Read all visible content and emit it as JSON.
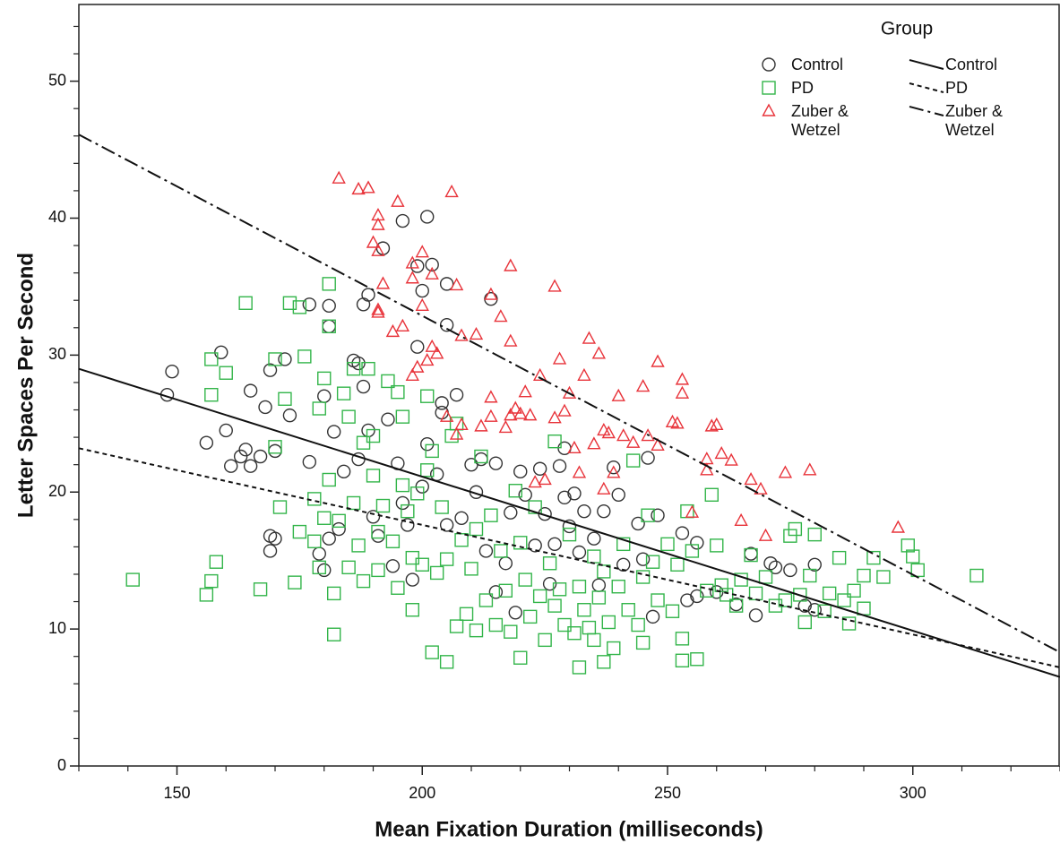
{
  "chart_data": {
    "type": "scatter",
    "xlabel": "Mean Fixation Duration (milliseconds)",
    "ylabel": "Letter Spaces Per Second",
    "legend_title": "Group",
    "xlim": [
      130,
      330
    ],
    "ylim": [
      0,
      55.6
    ],
    "xticks": [
      150,
      200,
      250,
      300
    ],
    "yticks": [
      0,
      10,
      20,
      30,
      40,
      50
    ],
    "xminor_ticks": [
      130,
      140,
      160,
      170,
      180,
      190,
      210,
      220,
      230,
      240,
      260,
      270,
      280,
      290,
      310,
      320,
      330
    ],
    "yminor_ticks": [
      2,
      4,
      6,
      8,
      12,
      14,
      16,
      18,
      22,
      24,
      26,
      28,
      32,
      34,
      36,
      38,
      42,
      44,
      46,
      48,
      52,
      54
    ],
    "series": [
      {
        "name": "Control",
        "color": "#333333",
        "marker": "circle",
        "x": [
          148,
          149,
          156,
          159,
          160,
          161,
          163,
          164,
          165,
          165,
          167,
          168,
          169,
          169,
          169,
          170,
          170,
          172,
          173,
          177,
          177,
          179,
          180,
          180,
          181,
          181,
          181,
          182,
          183,
          184,
          186,
          187,
          187,
          188,
          188,
          189,
          189,
          190,
          191,
          192,
          193,
          194,
          195,
          196,
          196,
          197,
          198,
          199,
          199,
          200,
          200,
          201,
          201,
          202,
          203,
          204,
          204,
          205,
          205,
          205,
          207,
          208,
          210,
          211,
          212,
          213,
          214,
          215,
          215,
          217,
          218,
          219,
          220,
          221,
          223,
          224,
          225,
          226,
          227,
          228,
          229,
          229,
          230,
          231,
          232,
          233,
          235,
          236,
          237,
          239,
          240,
          241,
          244,
          245,
          246,
          247,
          248,
          253,
          254,
          256,
          256,
          260,
          264,
          267,
          268,
          271,
          272,
          275,
          278,
          280,
          280
        ],
        "y": [
          27.1,
          28.8,
          23.6,
          30.2,
          24.5,
          21.9,
          22.6,
          23.1,
          21.9,
          27.4,
          22.6,
          26.2,
          28.9,
          16.8,
          15.7,
          23,
          16.6,
          29.7,
          25.6,
          22.2,
          33.7,
          15.5,
          27,
          14.3,
          32.1,
          33.6,
          16.6,
          24.4,
          17.3,
          21.5,
          29.6,
          29.4,
          22.4,
          27.7,
          33.7,
          24.5,
          34.4,
          18.2,
          16.8,
          37.8,
          25.3,
          14.6,
          22.1,
          39.8,
          19.2,
          17.6,
          13.6,
          36.5,
          30.6,
          34.7,
          20.4,
          40.1,
          23.5,
          36.6,
          21.3,
          26.5,
          25.8,
          35.2,
          32.2,
          17.6,
          27.1,
          18.1,
          22,
          20,
          22.4,
          15.7,
          34.1,
          12.7,
          22.1,
          14.8,
          18.5,
          11.2,
          21.5,
          19.8,
          16.1,
          21.7,
          18.4,
          13.3,
          16.2,
          21.9,
          19.6,
          23.2,
          17.5,
          19.9,
          15.6,
          18.6,
          16.6,
          13.2,
          18.6,
          21.8,
          19.8,
          14.7,
          17.7,
          15.1,
          22.5,
          10.9,
          18.3,
          17,
          12.1,
          16.3,
          12.4,
          12.7,
          11.8,
          15.5,
          11,
          14.8,
          14.5,
          14.3,
          11.7,
          14.7,
          11.4
        ]
      },
      {
        "name": "PD",
        "color": "#33b54a",
        "marker": "square",
        "x": [
          141,
          156,
          157,
          157,
          157,
          158,
          160,
          164,
          167,
          170,
          170,
          171,
          172,
          173,
          174,
          175,
          175,
          176,
          178,
          178,
          179,
          179,
          180,
          180,
          181,
          181,
          181,
          182,
          182,
          183,
          184,
          185,
          185,
          186,
          186,
          187,
          188,
          188,
          189,
          190,
          190,
          191,
          191,
          192,
          193,
          194,
          195,
          195,
          196,
          196,
          197,
          198,
          198,
          199,
          200,
          201,
          201,
          202,
          202,
          203,
          204,
          205,
          205,
          206,
          207,
          207,
          208,
          209,
          210,
          211,
          211,
          212,
          213,
          214,
          215,
          216,
          217,
          218,
          219,
          220,
          220,
          221,
          222,
          223,
          224,
          225,
          226,
          227,
          227,
          228,
          229,
          230,
          231,
          232,
          232,
          233,
          234,
          235,
          235,
          236,
          237,
          237,
          238,
          239,
          240,
          241,
          242,
          243,
          244,
          245,
          245,
          246,
          247,
          248,
          250,
          251,
          252,
          253,
          253,
          254,
          255,
          256,
          258,
          259,
          260,
          261,
          262,
          264,
          265,
          267,
          268,
          270,
          272,
          274,
          275,
          276,
          277,
          278,
          279,
          280,
          282,
          283,
          285,
          286,
          287,
          288,
          290,
          290,
          292,
          294,
          299,
          300,
          301,
          313
        ],
        "y": [
          13.6,
          12.5,
          29.7,
          27.1,
          13.5,
          14.9,
          28.7,
          33.8,
          12.9,
          29.7,
          23.3,
          18.9,
          26.8,
          33.8,
          13.4,
          33.5,
          17.1,
          29.9,
          19.5,
          16.4,
          14.5,
          26.1,
          18.1,
          28.3,
          35.2,
          32.1,
          20.9,
          9.6,
          12.6,
          17.9,
          27.2,
          25.5,
          14.5,
          29,
          19.2,
          16.1,
          13.5,
          23.6,
          29,
          24.1,
          21.2,
          17.1,
          14.3,
          19,
          28.1,
          16.4,
          27.3,
          13,
          25.5,
          20.5,
          18.6,
          15.2,
          11.4,
          19.9,
          14.7,
          27,
          21.6,
          8.3,
          23,
          14.1,
          18.9,
          7.6,
          15.1,
          24.1,
          10.2,
          25,
          16.5,
          11.1,
          14.4,
          17.3,
          9.9,
          22.6,
          12.1,
          18.3,
          10.3,
          15.7,
          12.8,
          9.8,
          20.1,
          7.9,
          16.3,
          13.6,
          10.9,
          18.9,
          12.4,
          9.2,
          14.8,
          11.7,
          23.7,
          12.9,
          10.3,
          16.9,
          9.7,
          7.2,
          13.1,
          11.4,
          10.1,
          15.3,
          9.2,
          12.3,
          7.6,
          14.2,
          10.5,
          8.6,
          13.1,
          16.2,
          11.4,
          22.3,
          10.3,
          9,
          13.8,
          18.3,
          14.9,
          12.1,
          16.2,
          11.3,
          14.7,
          9.3,
          7.7,
          18.6,
          15.7,
          7.8,
          12.8,
          19.8,
          16.1,
          13.2,
          12.5,
          11.7,
          13.6,
          15.4,
          12.6,
          13.8,
          11.7,
          12.1,
          16.8,
          17.3,
          12.5,
          10.5,
          13.9,
          16.9,
          11.3,
          12.6,
          15.2,
          12.1,
          10.4,
          12.8,
          11.5,
          13.9,
          15.2,
          13.8,
          16.1,
          15.3,
          14.3,
          13.9
        ]
      },
      {
        "name": "Zuber & Wetzel",
        "color": "#e8333a",
        "marker": "triangle",
        "x": [
          183,
          187,
          189,
          190,
          191,
          191,
          191,
          191,
          191,
          192,
          194,
          195,
          196,
          198,
          198,
          198,
          199,
          200,
          200,
          201,
          202,
          202,
          203,
          205,
          206,
          207,
          207,
          208,
          208,
          211,
          212,
          214,
          214,
          214,
          216,
          217,
          218,
          218,
          218,
          219,
          220,
          221,
          222,
          223,
          224,
          225,
          227,
          227,
          228,
          229,
          230,
          231,
          232,
          233,
          234,
          235,
          236,
          237,
          237,
          238,
          239,
          240,
          241,
          243,
          245,
          246,
          248,
          248,
          251,
          252,
          253,
          253,
          255,
          258,
          258,
          259,
          260,
          261,
          263,
          265,
          267,
          269,
          270,
          274,
          279,
          297
        ],
        "y": [
          42.9,
          42.1,
          42.2,
          38.2,
          40.2,
          39.5,
          37.6,
          33.3,
          33.1,
          35.2,
          31.7,
          41.2,
          32.1,
          35.6,
          28.5,
          36.7,
          29.1,
          33.6,
          37.5,
          29.6,
          30.6,
          35.9,
          30.1,
          25.5,
          41.9,
          35.1,
          24.2,
          31.4,
          24.9,
          31.5,
          24.8,
          25.5,
          34.4,
          26.9,
          32.8,
          24.7,
          25.6,
          36.5,
          31,
          26.1,
          25.7,
          27.3,
          25.6,
          20.7,
          28.5,
          20.9,
          35,
          25.4,
          29.7,
          25.9,
          27.2,
          23.2,
          21.4,
          28.5,
          31.2,
          23.5,
          30.1,
          20.2,
          24.5,
          24.3,
          21.4,
          27,
          24.1,
          23.6,
          27.7,
          24.1,
          29.5,
          23.4,
          25.1,
          25,
          28.2,
          27.2,
          18.5,
          22.4,
          21.6,
          24.8,
          24.9,
          22.8,
          22.3,
          17.9,
          20.9,
          20.2,
          16.8,
          21.4,
          21.6,
          17.4
        ]
      }
    ],
    "fit_lines": [
      {
        "name": "Control",
        "dash": "solid",
        "x": [
          130,
          330
        ],
        "y": [
          29,
          6.5
        ]
      },
      {
        "name": "PD",
        "dash": "dotted",
        "x": [
          130,
          330
        ],
        "y": [
          23.2,
          7.2
        ]
      },
      {
        "name": "Zuber & Wetzel",
        "dash": "dash-dot",
        "x": [
          130,
          330
        ],
        "y": [
          46.1,
          8.3
        ]
      }
    ]
  }
}
